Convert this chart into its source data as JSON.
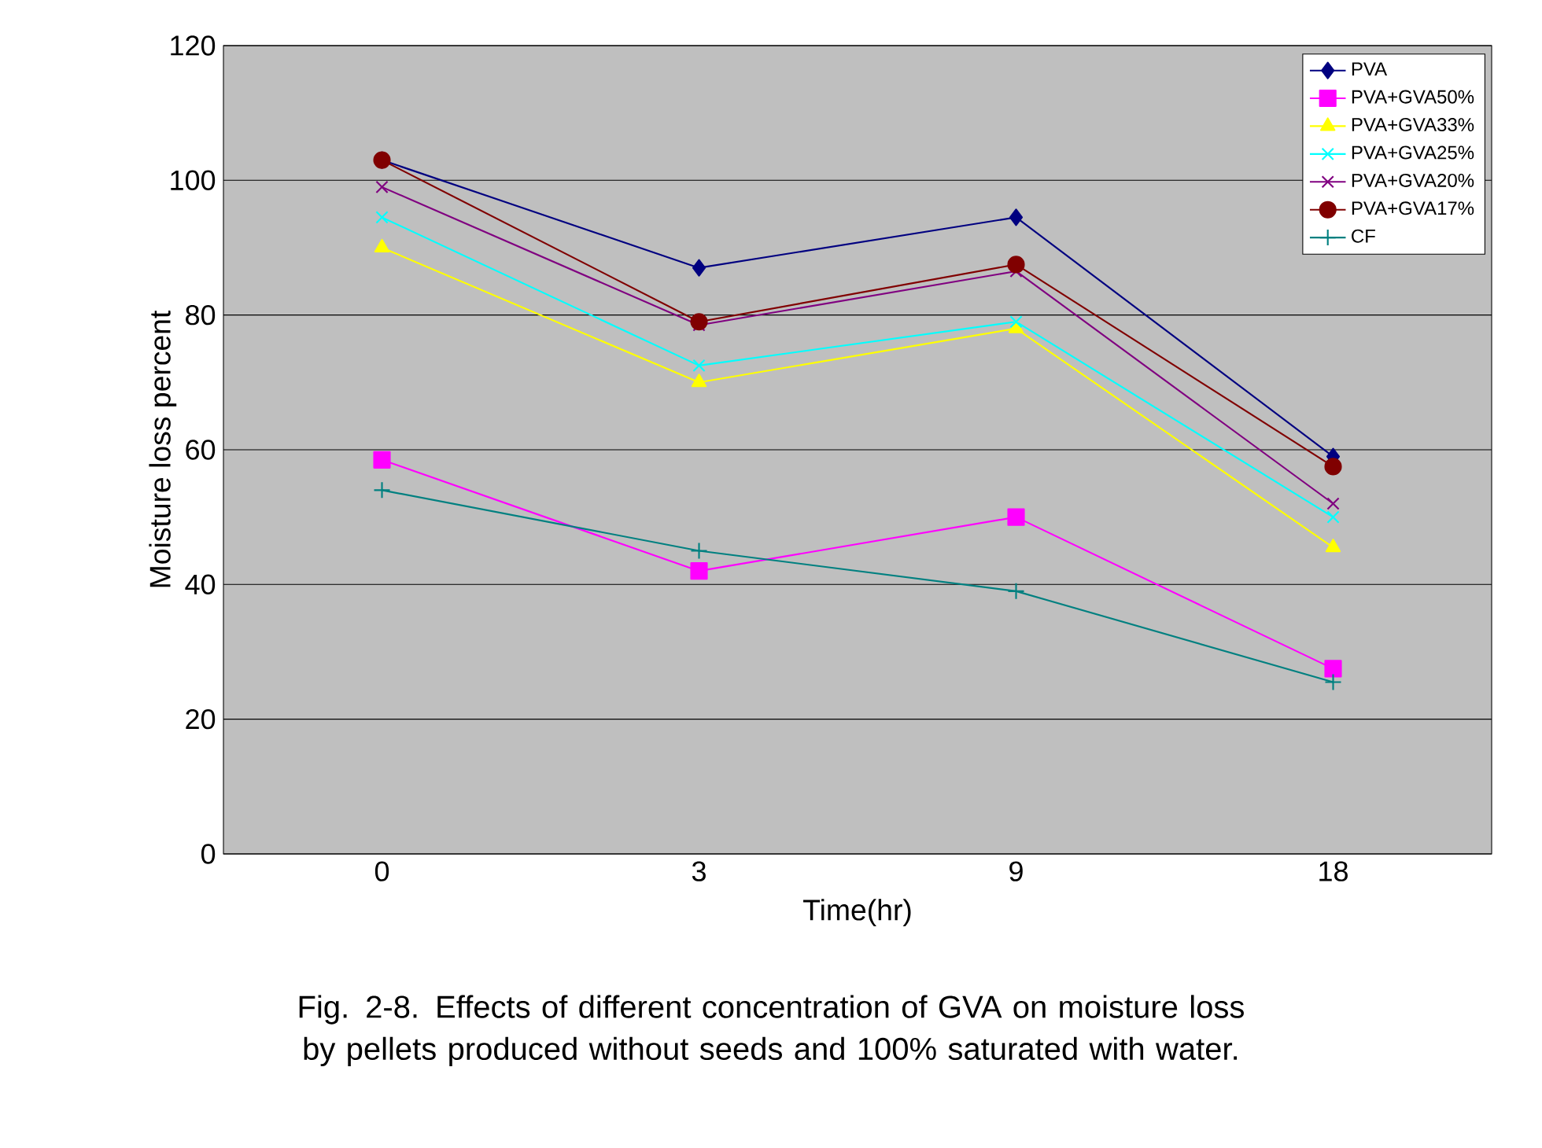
{
  "chart_data": {
    "type": "line",
    "title": "Fig. 2-8. Effects of different concentration of GVA on moisture loss by pellets produced without seeds and 100% saturated with water.",
    "xlabel": "Time(hr)",
    "ylabel": "Moisture loss percent",
    "categories": [
      "0",
      "3",
      "9",
      "18"
    ],
    "ylim": [
      0,
      120
    ],
    "yticks": [
      0,
      20,
      40,
      60,
      80,
      100,
      120
    ],
    "grid": "y",
    "legend": "top right",
    "line_style": "solid",
    "series": [
      {
        "name": "PVA",
        "color": "#000080",
        "marker": "diamond",
        "values": [
          103,
          87,
          94.5,
          59
        ]
      },
      {
        "name": "PVA+GVA50%",
        "color": "#ff00ff",
        "marker": "square",
        "values": [
          58.5,
          42,
          50,
          27.5
        ]
      },
      {
        "name": "PVA+GVA33%",
        "color": "#ffff00",
        "marker": "triangle",
        "values": [
          90,
          70,
          78,
          45.5
        ]
      },
      {
        "name": "PVA+GVA25%",
        "color": "#00ffff",
        "marker": "cross",
        "values": [
          94.5,
          72.5,
          79,
          50
        ]
      },
      {
        "name": "PVA+GVA20%",
        "color": "#800080",
        "marker": "cross",
        "values": [
          99,
          78.5,
          86.5,
          52
        ]
      },
      {
        "name": "PVA+GVA17%",
        "color": "#800000",
        "marker": "circle",
        "values": [
          103,
          79,
          87.5,
          57.5
        ]
      },
      {
        "name": "CF",
        "color": "#008080",
        "marker": "plus",
        "values": [
          54,
          45,
          39,
          25.5
        ]
      }
    ]
  }
}
